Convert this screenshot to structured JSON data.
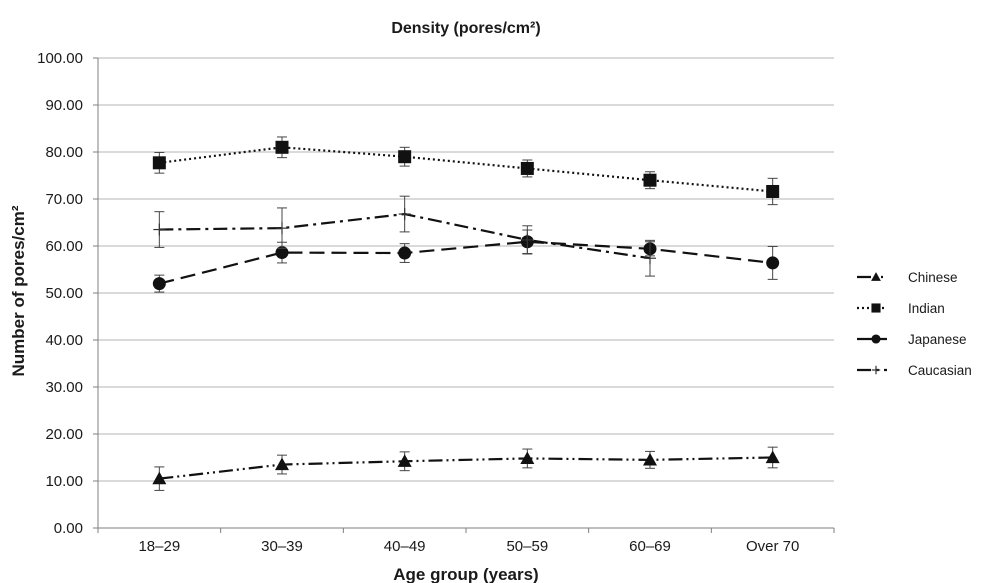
{
  "chart_data": {
    "type": "line",
    "title": "Density (pores/cm²)",
    "xlabel": "Age group (years)",
    "ylabel": "Number of pores/cm²",
    "ylim": [
      0,
      100
    ],
    "yticks": [
      "0.00",
      "10.00",
      "20.00",
      "30.00",
      "40.00",
      "50.00",
      "60.00",
      "70.00",
      "80.00",
      "90.00",
      "100.00"
    ],
    "categories": [
      "18–29",
      "30–39",
      "40–49",
      "50–59",
      "60–69",
      "Over 70"
    ],
    "grid": true,
    "legend_position": "right",
    "error_bars": true,
    "series": [
      {
        "name": "Chinese",
        "marker": "triangle",
        "line_style": "dash-dot-dot",
        "values": [
          10.5,
          13.5,
          14.2,
          14.8,
          14.5,
          15.0
        ],
        "errors": [
          2.5,
          2.0,
          2.0,
          2.0,
          1.8,
          2.2
        ]
      },
      {
        "name": "Indian",
        "marker": "square",
        "line_style": "dotted",
        "values": [
          77.7,
          81.0,
          79.0,
          76.5,
          74.0,
          71.6
        ],
        "errors": [
          2.2,
          2.2,
          2.0,
          1.8,
          1.8,
          2.8
        ]
      },
      {
        "name": "Japanese",
        "marker": "circle",
        "line_style": "long-dash",
        "values": [
          52.0,
          58.6,
          58.5,
          60.9,
          59.4,
          56.4
        ],
        "errors": [
          1.8,
          2.2,
          2.0,
          2.5,
          1.5,
          3.5
        ]
      },
      {
        "name": "Caucasian",
        "marker": "plus",
        "line_style": "dash-dot",
        "values": [
          63.5,
          63.8,
          66.8,
          61.3,
          57.4,
          null
        ],
        "errors": [
          3.8,
          4.3,
          3.8,
          3.0,
          3.8,
          null
        ]
      }
    ]
  }
}
